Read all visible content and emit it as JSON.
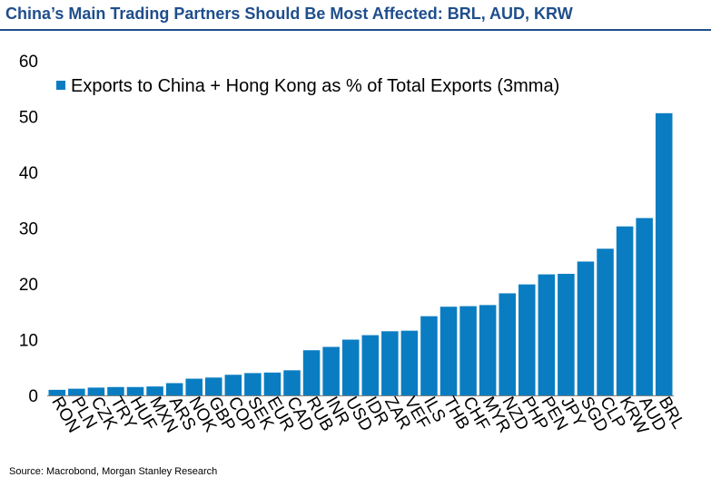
{
  "title": "China’s Main Trading Partners Should Be Most Affected: BRL, AUD, KRW",
  "source": "Source: Macrobond, Morgan Stanley Research",
  "chart_data": {
    "type": "bar",
    "legend_position": "top-left",
    "bar_color": "#0a7dc2",
    "series": [
      {
        "name": "Exports to China + Hong Kong as % of Total Exports (3mma)",
        "values": [
          1.0,
          1.2,
          1.4,
          1.5,
          1.5,
          1.6,
          2.2,
          3.0,
          3.2,
          3.7,
          4.0,
          4.1,
          4.5,
          8.1,
          8.7,
          10.0,
          10.8,
          11.5,
          11.6,
          14.2,
          15.9,
          16.0,
          16.2,
          18.3,
          19.9,
          21.7,
          21.8,
          24.0,
          26.3,
          30.3,
          31.8,
          50.6
        ]
      }
    ],
    "categories": [
      "RON",
      "PLN",
      "CZK",
      "TRY",
      "HUF",
      "MXN",
      "ARS",
      "NOK",
      "GBP",
      "COP",
      "SEK",
      "EUR",
      "CAD",
      "RUB",
      "INR",
      "USD",
      "IDR",
      "ZAR",
      "VEF",
      "ILS",
      "THB",
      "CHF",
      "MYR",
      "NZD",
      "PHP",
      "PEN",
      "JPY",
      "SGD",
      "CLP",
      "KRW",
      "AUD",
      "BRL"
    ],
    "ylim": [
      0,
      60
    ],
    "yticks": [
      "0",
      "10",
      "20",
      "30",
      "40",
      "50",
      "60"
    ],
    "grid": false
  }
}
